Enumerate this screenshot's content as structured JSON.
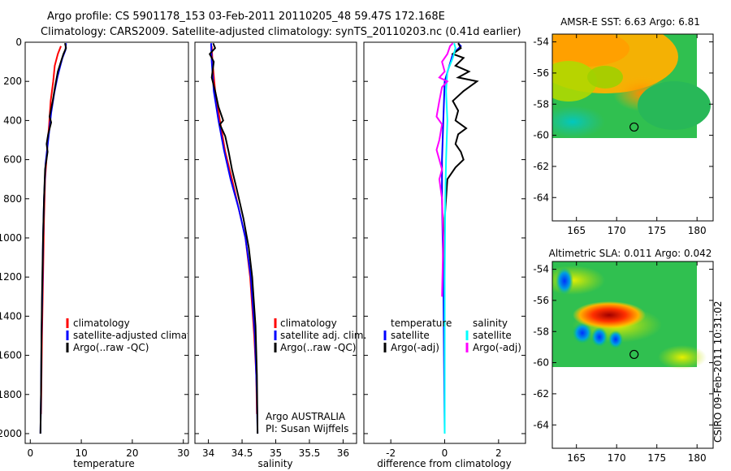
{
  "header": {
    "line1": "Argo profile: CS 5901178_153 03-Feb-2011 20110205_48 59.47S 172.168E",
    "line2": "Climatology: CARS2009. Satellite-adjusted climatology: synTS_20110203.nc (0.41d earlier)"
  },
  "stamp": "CSIRO 09-Feb-2011 10:31:02",
  "colors": {
    "red": "#ff0000",
    "blue": "#0000ff",
    "black": "#000000",
    "cyan": "#00ffff",
    "magenta": "#ff00ff"
  },
  "chart_data": [
    {
      "type": "line",
      "xlabel": "temperature",
      "xlim": [
        -1,
        31
      ],
      "ylim": [
        2050,
        0
      ],
      "xticks": [
        0,
        10,
        20,
        30
      ],
      "yticks": [
        0,
        200,
        400,
        600,
        800,
        1000,
        1200,
        1400,
        1600,
        1800,
        2000
      ],
      "legend": [
        "climatology",
        "satellite-adjusted climatology",
        "Argo(..raw -QC)"
      ],
      "series": [
        {
          "name": "climatology",
          "color": "red",
          "points": [
            [
              6.0,
              20
            ],
            [
              5.4,
              60
            ],
            [
              4.8,
              120
            ],
            [
              4.5,
              200
            ],
            [
              4.0,
              300
            ],
            [
              3.7,
              420
            ],
            [
              3.3,
              550
            ],
            [
              2.9,
              700
            ],
            [
              2.7,
              900
            ],
            [
              2.5,
              1200
            ],
            [
              2.3,
              1500
            ],
            [
              2.1,
              1900
            ]
          ]
        },
        {
          "name": "satellite-adjusted climatology",
          "color": "blue",
          "points": [
            [
              7.0,
              5
            ],
            [
              6.9,
              40
            ],
            [
              6.3,
              80
            ],
            [
              5.9,
              120
            ],
            [
              5.3,
              180
            ],
            [
              4.7,
              260
            ],
            [
              4.1,
              360
            ],
            [
              3.6,
              480
            ],
            [
              3.0,
              620
            ],
            [
              2.7,
              800
            ],
            [
              2.5,
              1000
            ],
            [
              2.4,
              1200
            ],
            [
              2.2,
              1500
            ],
            [
              2.1,
              1800
            ],
            [
              2.0,
              2000
            ]
          ]
        },
        {
          "name": "Argo(..raw -QC)",
          "color": "black",
          "points": [
            [
              6.8,
              5
            ],
            [
              7.0,
              30
            ],
            [
              6.5,
              60
            ],
            [
              6.0,
              100
            ],
            [
              5.4,
              150
            ],
            [
              4.9,
              220
            ],
            [
              4.4,
              300
            ],
            [
              3.8,
              380
            ],
            [
              4.1,
              410
            ],
            [
              3.5,
              470
            ],
            [
              3.2,
              520
            ],
            [
              3.4,
              560
            ],
            [
              2.9,
              650
            ],
            [
              2.7,
              800
            ],
            [
              2.5,
              1000
            ],
            [
              2.3,
              1300
            ],
            [
              2.2,
              1500
            ],
            [
              2.1,
              1800
            ],
            [
              2.0,
              2000
            ]
          ]
        }
      ]
    },
    {
      "type": "line",
      "xlabel": "salinity",
      "xlim": [
        33.8,
        36.2
      ],
      "ylim": [
        2050,
        0
      ],
      "xticks": [
        34,
        34.5,
        35,
        35.5,
        36
      ],
      "yticks": [
        0,
        200,
        400,
        600,
        800,
        1000,
        1200,
        1400,
        1600,
        1800,
        2000
      ],
      "legend": [
        "climatology",
        "satellite adj. clim.",
        "Argo(..raw -QC)"
      ],
      "annotation": [
        "Argo AUSTRALIA",
        "PI: Susan Wijffels"
      ],
      "series": [
        {
          "name": "climatology",
          "color": "red",
          "points": [
            [
              34.05,
              20
            ],
            [
              34.06,
              100
            ],
            [
              34.1,
              250
            ],
            [
              34.17,
              400
            ],
            [
              34.25,
              560
            ],
            [
              34.35,
              700
            ],
            [
              34.45,
              850
            ],
            [
              34.55,
              1000
            ],
            [
              34.62,
              1200
            ],
            [
              34.68,
              1500
            ],
            [
              34.71,
              1700
            ],
            [
              34.72,
              1900
            ]
          ]
        },
        {
          "name": "satellite adj. clim.",
          "color": "blue",
          "points": [
            [
              34.04,
              5
            ],
            [
              34.05,
              100
            ],
            [
              34.08,
              250
            ],
            [
              34.15,
              400
            ],
            [
              34.23,
              550
            ],
            [
              34.33,
              700
            ],
            [
              34.45,
              850
            ],
            [
              34.55,
              1000
            ],
            [
              34.63,
              1200
            ],
            [
              34.69,
              1500
            ],
            [
              34.72,
              1800
            ],
            [
              34.73,
              2000
            ]
          ]
        },
        {
          "name": "Argo(..raw -QC)",
          "color": "black",
          "points": [
            [
              34.07,
              5
            ],
            [
              34.1,
              30
            ],
            [
              34.02,
              60
            ],
            [
              34.08,
              100
            ],
            [
              34.05,
              180
            ],
            [
              34.1,
              250
            ],
            [
              34.15,
              330
            ],
            [
              34.22,
              400
            ],
            [
              34.17,
              420
            ],
            [
              34.25,
              480
            ],
            [
              34.3,
              560
            ],
            [
              34.35,
              650
            ],
            [
              34.42,
              750
            ],
            [
              34.52,
              900
            ],
            [
              34.6,
              1050
            ],
            [
              34.65,
              1200
            ],
            [
              34.7,
              1450
            ],
            [
              34.72,
              1700
            ],
            [
              34.73,
              2000
            ]
          ]
        }
      ]
    },
    {
      "type": "line",
      "xlabel": "difference from climatology",
      "xlim": [
        -3,
        3
      ],
      "ylim": [
        2050,
        0
      ],
      "xticks": [
        -2,
        0,
        2
      ],
      "yticks": [
        0,
        200,
        400,
        600,
        800,
        1000,
        1200,
        1400,
        1600,
        1800,
        2000
      ],
      "legend_groups": [
        {
          "title": "temperature",
          "items": [
            "satellite",
            "Argo(-adj)"
          ]
        },
        {
          "title": "salinity",
          "items": [
            "satellite",
            "Argo(-adj)"
          ]
        }
      ],
      "series": [
        {
          "name": "temperature satellite",
          "color": "blue",
          "points": [
            [
              0.0,
              2000
            ],
            [
              -0.05,
              1200
            ],
            [
              -0.1,
              800
            ],
            [
              -0.1,
              600
            ],
            [
              -0.05,
              400
            ],
            [
              0.0,
              200
            ],
            [
              0.3,
              60
            ],
            [
              0.6,
              20
            ],
            [
              0.5,
              5
            ]
          ]
        },
        {
          "name": "temperature Argo(-adj)",
          "color": "black",
          "points": [
            [
              0.0,
              2000
            ],
            [
              0.0,
              900
            ],
            [
              0.1,
              700
            ],
            [
              0.4,
              640
            ],
            [
              0.7,
              600
            ],
            [
              0.6,
              560
            ],
            [
              0.4,
              520
            ],
            [
              0.5,
              470
            ],
            [
              0.8,
              440
            ],
            [
              0.6,
              420
            ],
            [
              0.4,
              400
            ],
            [
              0.5,
              350
            ],
            [
              0.3,
              300
            ],
            [
              0.7,
              250
            ],
            [
              1.2,
              200
            ],
            [
              0.5,
              180
            ],
            [
              0.9,
              150
            ],
            [
              0.4,
              120
            ],
            [
              0.7,
              80
            ],
            [
              0.3,
              60
            ],
            [
              0.6,
              30
            ],
            [
              0.5,
              5
            ]
          ]
        },
        {
          "name": "salinity satellite",
          "color": "cyan",
          "points": [
            [
              0.0,
              2000
            ],
            [
              0.0,
              1200
            ],
            [
              0.02,
              800
            ],
            [
              0.05,
              600
            ],
            [
              0.1,
              400
            ],
            [
              0.05,
              250
            ],
            [
              0.1,
              150
            ],
            [
              0.3,
              80
            ],
            [
              0.4,
              30
            ],
            [
              0.35,
              5
            ]
          ]
        },
        {
          "name": "salinity Argo(-adj)",
          "color": "magenta",
          "points": [
            [
              -0.1,
              1300
            ],
            [
              -0.05,
              1000
            ],
            [
              -0.1,
              800
            ],
            [
              -0.2,
              700
            ],
            [
              -0.1,
              650
            ],
            [
              -0.3,
              550
            ],
            [
              -0.2,
              500
            ],
            [
              -0.1,
              420
            ],
            [
              -0.3,
              380
            ],
            [
              -0.2,
              300
            ],
            [
              -0.1,
              230
            ],
            [
              0.1,
              200
            ],
            [
              -0.2,
              180
            ],
            [
              0.0,
              150
            ],
            [
              -0.1,
              100
            ],
            [
              0.1,
              60
            ],
            [
              0.2,
              20
            ],
            [
              0.3,
              5
            ]
          ]
        }
      ]
    },
    {
      "type": "heatmap",
      "title": "AMSR-E SST: 6.63 Argo: 6.81",
      "xlim": [
        162,
        182
      ],
      "ylim": [
        -65.5,
        -53.5
      ],
      "xticks": [
        165,
        170,
        175,
        180
      ],
      "yticks": [
        -54,
        -56,
        -58,
        -60,
        -62,
        -64
      ],
      "data_extent": {
        "lon": [
          162,
          180
        ],
        "lat": [
          -60,
          -54
        ]
      },
      "marker": {
        "lon": 172.168,
        "lat": -59.47
      }
    },
    {
      "type": "heatmap",
      "title": "Altimetric SLA: 0.011 Argo: 0.042",
      "xlim": [
        162,
        182
      ],
      "ylim": [
        -65.5,
        -53.5
      ],
      "xticks": [
        165,
        170,
        175,
        180
      ],
      "yticks": [
        -54,
        -56,
        -58,
        -60,
        -62,
        -64
      ],
      "data_extent": {
        "lon": [
          162,
          180
        ],
        "lat": [
          -60,
          -54
        ]
      },
      "marker": {
        "lon": 172.168,
        "lat": -59.47
      }
    }
  ]
}
